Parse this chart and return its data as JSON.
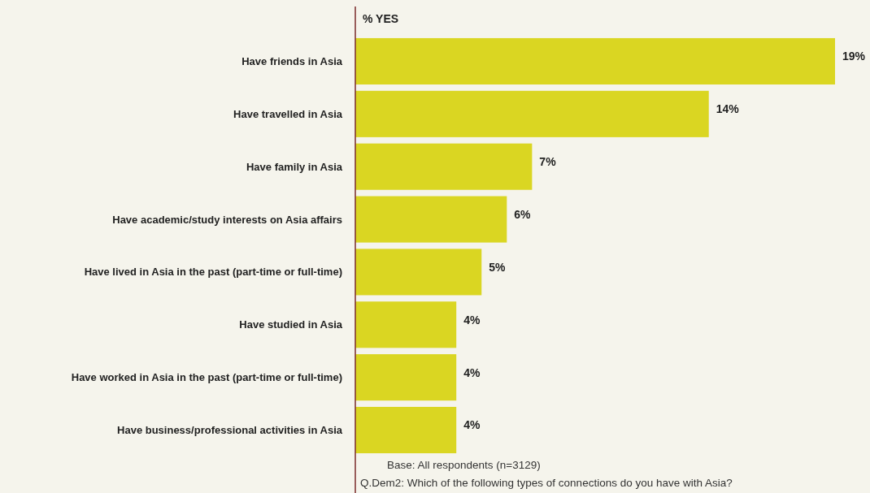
{
  "chart_data": {
    "type": "bar",
    "orientation": "horizontal",
    "title": "% YES",
    "categories": [
      "Have friends in Asia",
      "Have travelled in Asia",
      "Have family in Asia",
      "Have academic/study interests on Asia affairs",
      "Have lived in Asia in the past (part-time or full-time)",
      "Have studied in Asia",
      "Have worked in Asia in the past (part-time or full-time)",
      "Have business/professional activities in Asia"
    ],
    "values": [
      19,
      14,
      7,
      6,
      5,
      4,
      4,
      4
    ],
    "value_labels": [
      "19%",
      "14%",
      "7%",
      "6%",
      "5%",
      "4%",
      "4%",
      "4%"
    ],
    "color": "#dad622",
    "annotations": [
      "Base: All respondents (n=3129)",
      "Q.Dem2: Which of the following types of connections do you have with Asia?"
    ]
  }
}
